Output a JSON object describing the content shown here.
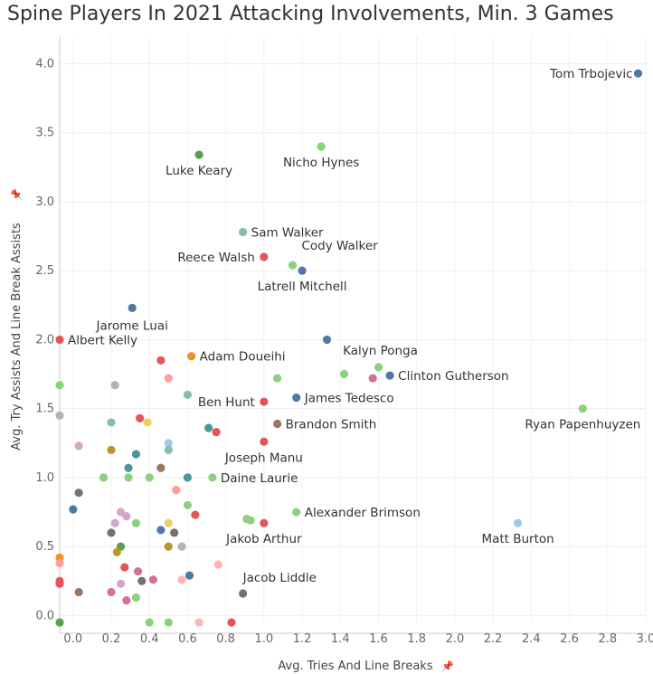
{
  "chart_data": {
    "type": "scatter",
    "title": "Spine Players In 2021 Attacking Involvements, Min. 3 Games",
    "xlabel": "Avg. Tries And Line Breaks",
    "ylabel": "Avg. Try Assists And Line Break Assists",
    "axis_pin_icon": "pin-icon",
    "xlim": [
      -0.07,
      3.0
    ],
    "ylim": [
      -0.05,
      4.2
    ],
    "x_ticks": [
      "0.0",
      "0.2",
      "0.4",
      "0.6",
      "0.8",
      "1.0",
      "1.2",
      "1.4",
      "1.6",
      "1.8",
      "2.0",
      "2.2",
      "2.4",
      "2.6",
      "2.8",
      "3.0"
    ],
    "x_tick_values": [
      0,
      0.2,
      0.4,
      0.6,
      0.8,
      1.0,
      1.2,
      1.4,
      1.6,
      1.8,
      2.0,
      2.2,
      2.4,
      2.6,
      2.8,
      3.0
    ],
    "y_ticks": [
      "0.0",
      "0.5",
      "1.0",
      "1.5",
      "2.0",
      "2.5",
      "3.0",
      "3.5",
      "4.0"
    ],
    "y_tick_values": [
      0,
      0.5,
      1.0,
      1.5,
      2.0,
      2.5,
      3.0,
      3.5,
      4.0
    ],
    "grid": true,
    "points": [
      {
        "x": 2.96,
        "y": 3.93,
        "color": "#4e79a7",
        "label": "Tom Trbojevic"
      },
      {
        "x": 1.3,
        "y": 3.4,
        "color": "#8cd17d",
        "label": "Nicho Hynes"
      },
      {
        "x": 0.66,
        "y": 3.34,
        "color": "#59a14f",
        "label": "Luke Keary"
      },
      {
        "x": 0.89,
        "y": 2.78,
        "color": "#86bcb6",
        "label": "Sam Walker"
      },
      {
        "x": 1.0,
        "y": 2.6,
        "color": "#e15759",
        "label": "Reece Walsh"
      },
      {
        "x": 1.15,
        "y": 2.54,
        "color": "#8cd17d",
        "label": "Cody Walker"
      },
      {
        "x": 1.2,
        "y": 2.5,
        "color": "#4e79a7",
        "label": "Latrell Mitchell"
      },
      {
        "x": 0.31,
        "y": 2.23,
        "color": "#4e79a7",
        "label": "Jarome Luai"
      },
      {
        "x": -0.07,
        "y": 2.0,
        "color": "#e15759",
        "label": "Albert Kelly"
      },
      {
        "x": 0.62,
        "y": 1.88,
        "color": "#f28e2b",
        "label": "Adam Doueihi"
      },
      {
        "x": 1.6,
        "y": 1.8,
        "color": "#8cd17d",
        "label": "Kalyn Ponga"
      },
      {
        "x": 1.66,
        "y": 1.74,
        "color": "#4e79a7",
        "label": "Clinton Gutherson"
      },
      {
        "x": 1.0,
        "y": 1.55,
        "color": "#e15759",
        "label": "Ben Hunt"
      },
      {
        "x": 1.17,
        "y": 1.58,
        "color": "#4e79a7",
        "label": "James Tedesco"
      },
      {
        "x": 1.07,
        "y": 1.39,
        "color": "#9c755f",
        "label": "Brandon Smith"
      },
      {
        "x": 2.67,
        "y": 1.5,
        "color": "#8cd17d",
        "label": "Ryan Papenhuyzen"
      },
      {
        "x": 1.0,
        "y": 1.26,
        "color": "#e15759",
        "label": "Joseph Manu"
      },
      {
        "x": 0.73,
        "y": 1.0,
        "color": "#8cd17d",
        "label": "Daine Laurie"
      },
      {
        "x": 1.17,
        "y": 0.75,
        "color": "#8cd17d",
        "label": "Alexander Brimson"
      },
      {
        "x": 1.0,
        "y": 0.67,
        "color": "#e15759",
        "label": "Jakob Arthur"
      },
      {
        "x": 2.33,
        "y": 0.67,
        "color": "#a0cbe8",
        "label": "Matt Burton"
      },
      {
        "x": 0.89,
        "y": 0.16,
        "color": "#79706e",
        "label": "Jacob Liddle"
      },
      {
        "x": 1.33,
        "y": 2.0,
        "color": "#4e79a7",
        "label": ""
      },
      {
        "x": 0.46,
        "y": 1.85,
        "color": "#e15759",
        "label": ""
      },
      {
        "x": -0.07,
        "y": 1.67,
        "color": "#8cd17d",
        "label": ""
      },
      {
        "x": 0.22,
        "y": 1.67,
        "color": "#bab0ac",
        "label": ""
      },
      {
        "x": 0.5,
        "y": 1.72,
        "color": "#ff9d9a",
        "label": ""
      },
      {
        "x": 0.6,
        "y": 1.6,
        "color": "#86bcb6",
        "label": ""
      },
      {
        "x": 1.07,
        "y": 1.72,
        "color": "#8cd17d",
        "label": ""
      },
      {
        "x": 1.42,
        "y": 1.75,
        "color": "#8cd17d",
        "label": ""
      },
      {
        "x": 1.57,
        "y": 1.72,
        "color": "#d37295",
        "label": ""
      },
      {
        "x": -0.07,
        "y": 1.45,
        "color": "#bab0ac",
        "label": ""
      },
      {
        "x": 0.2,
        "y": 1.4,
        "color": "#86bcb6",
        "label": ""
      },
      {
        "x": 0.35,
        "y": 1.43,
        "color": "#e15759",
        "label": ""
      },
      {
        "x": 0.39,
        "y": 1.4,
        "color": "#f1ce63",
        "label": ""
      },
      {
        "x": 0.5,
        "y": 1.25,
        "color": "#a0cbe8",
        "label": ""
      },
      {
        "x": 0.5,
        "y": 1.2,
        "color": "#86bcb6",
        "label": ""
      },
      {
        "x": 0.71,
        "y": 1.36,
        "color": "#499894",
        "label": ""
      },
      {
        "x": 0.75,
        "y": 1.33,
        "color": "#e15759",
        "label": ""
      },
      {
        "x": 0.03,
        "y": 1.23,
        "color": "#d4a6c8",
        "label": ""
      },
      {
        "x": 0.2,
        "y": 1.2,
        "color": "#b6992d",
        "label": ""
      },
      {
        "x": 0.33,
        "y": 1.17,
        "color": "#499894",
        "label": ""
      },
      {
        "x": 0.29,
        "y": 1.07,
        "color": "#499894",
        "label": ""
      },
      {
        "x": 0.46,
        "y": 1.07,
        "color": "#9c755f",
        "label": ""
      },
      {
        "x": 0.16,
        "y": 1.0,
        "color": "#8cd17d",
        "label": ""
      },
      {
        "x": 0.4,
        "y": 1.0,
        "color": "#8cd17d",
        "label": ""
      },
      {
        "x": 0.29,
        "y": 1.0,
        "color": "#8cd17d",
        "label": ""
      },
      {
        "x": 0.6,
        "y": 1.0,
        "color": "#499894",
        "label": ""
      },
      {
        "x": 0.54,
        "y": 0.91,
        "color": "#ff9d9a",
        "label": ""
      },
      {
        "x": 0.03,
        "y": 0.89,
        "color": "#79706e",
        "label": ""
      },
      {
        "x": 0.0,
        "y": 0.77,
        "color": "#4e79a7",
        "label": ""
      },
      {
        "x": 0.6,
        "y": 0.8,
        "color": "#8cd17d",
        "label": ""
      },
      {
        "x": 0.25,
        "y": 0.75,
        "color": "#d4a6c8",
        "label": ""
      },
      {
        "x": 0.28,
        "y": 0.72,
        "color": "#d4a6c8",
        "label": ""
      },
      {
        "x": 0.64,
        "y": 0.73,
        "color": "#e15759",
        "label": ""
      },
      {
        "x": 0.22,
        "y": 0.67,
        "color": "#d4a6c8",
        "label": ""
      },
      {
        "x": 0.33,
        "y": 0.67,
        "color": "#8cd17d",
        "label": ""
      },
      {
        "x": 0.5,
        "y": 0.67,
        "color": "#f1ce63",
        "label": ""
      },
      {
        "x": 0.91,
        "y": 0.7,
        "color": "#8cd17d",
        "label": ""
      },
      {
        "x": 0.93,
        "y": 0.69,
        "color": "#8cd17d",
        "label": ""
      },
      {
        "x": 0.2,
        "y": 0.6,
        "color": "#79706e",
        "label": ""
      },
      {
        "x": 0.46,
        "y": 0.62,
        "color": "#4e79a7",
        "label": ""
      },
      {
        "x": 0.53,
        "y": 0.6,
        "color": "#79706e",
        "label": ""
      },
      {
        "x": 0.25,
        "y": 0.5,
        "color": "#59a14f",
        "label": ""
      },
      {
        "x": 0.5,
        "y": 0.5,
        "color": "#b6992d",
        "label": ""
      },
      {
        "x": 0.57,
        "y": 0.5,
        "color": "#bab0ac",
        "label": ""
      },
      {
        "x": 0.23,
        "y": 0.46,
        "color": "#b6992d",
        "label": ""
      },
      {
        "x": -0.07,
        "y": 0.42,
        "color": "#f28e2b",
        "label": ""
      },
      {
        "x": -0.07,
        "y": 0.38,
        "color": "#ff9d9a",
        "label": ""
      },
      {
        "x": 0.27,
        "y": 0.35,
        "color": "#e15759",
        "label": ""
      },
      {
        "x": 0.34,
        "y": 0.32,
        "color": "#d37295",
        "label": ""
      },
      {
        "x": 0.61,
        "y": 0.29,
        "color": "#4e79a7",
        "label": ""
      },
      {
        "x": 0.76,
        "y": 0.37,
        "color": "#ffb5b8",
        "label": ""
      },
      {
        "x": -0.07,
        "y": 0.25,
        "color": "#e15759",
        "label": ""
      },
      {
        "x": -0.07,
        "y": 0.23,
        "color": "#e15759",
        "label": ""
      },
      {
        "x": 0.25,
        "y": 0.23,
        "color": "#d4a6c8",
        "label": ""
      },
      {
        "x": 0.36,
        "y": 0.25,
        "color": "#79706e",
        "label": ""
      },
      {
        "x": 0.42,
        "y": 0.26,
        "color": "#d37295",
        "label": ""
      },
      {
        "x": 0.57,
        "y": 0.26,
        "color": "#ffb5b8",
        "label": ""
      },
      {
        "x": 0.03,
        "y": 0.17,
        "color": "#9c755f",
        "label": ""
      },
      {
        "x": 0.2,
        "y": 0.17,
        "color": "#d37295",
        "label": ""
      },
      {
        "x": 0.33,
        "y": 0.13,
        "color": "#8cd17d",
        "label": ""
      },
      {
        "x": 0.28,
        "y": 0.11,
        "color": "#d37295",
        "label": ""
      },
      {
        "x": -0.07,
        "y": -0.05,
        "color": "#59a14f",
        "label": ""
      },
      {
        "x": 0.4,
        "y": -0.05,
        "color": "#8cd17d",
        "label": ""
      },
      {
        "x": 0.5,
        "y": -0.05,
        "color": "#8cd17d",
        "label": ""
      },
      {
        "x": 0.66,
        "y": -0.05,
        "color": "#ffb5b8",
        "label": ""
      },
      {
        "x": 0.83,
        "y": -0.05,
        "color": "#e15759",
        "label": ""
      }
    ]
  }
}
